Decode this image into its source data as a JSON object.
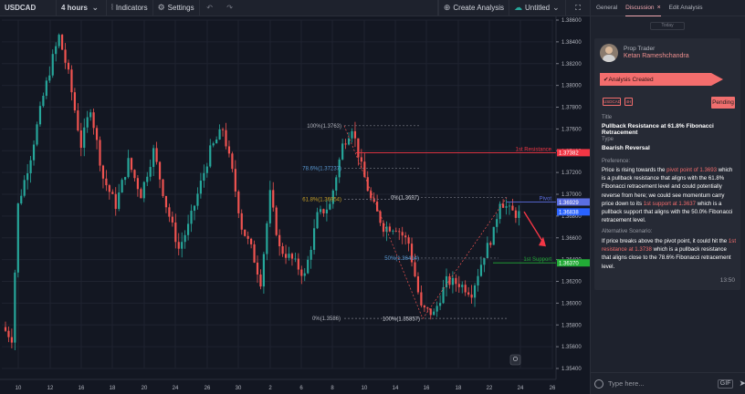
{
  "toolbar": {
    "symbol": "USDCAD",
    "interval": "4 hours",
    "indicators_label": "Indicators",
    "settings_label": "Settings",
    "create_analysis_label": "Create Analysis",
    "layout_label": "Untitled"
  },
  "panel": {
    "tabs": [
      "General",
      "Discussion",
      "Edit Analysis"
    ],
    "active_tab": "Discussion",
    "date_chip": "Today",
    "author_role": "Prop Trader",
    "author_name": "Ketan Rameshchandra",
    "status_banner": "Analysis Created",
    "tag_symbol": "USDCAD",
    "tag_interval": "4H",
    "pending_label": "Pending",
    "title_label": "Title",
    "title_value": "Pullback Resistance at 61.8% Fibonacci Retracement",
    "type_label": "Type",
    "type_value": "Bearish Reversal",
    "preference_label": "Preference:",
    "preference_text": [
      {
        "t": "Price is rising towards the ",
        "h": false
      },
      {
        "t": "pivot point of 1.3693",
        "h": true
      },
      {
        "t": " which is a pullback resistance that aligns with the 61.8% Fibonacci retracement level and could potentially reverse from here; we could see momentum carry price down to its ",
        "h": false
      },
      {
        "t": "1st support at 1.3637",
        "h": true
      },
      {
        "t": " which is a pullback support that aligns with the 50.0% Fibonacci retracement level.",
        "h": false
      }
    ],
    "alternative_label": "Alternative Scenario:",
    "alternative_text": [
      {
        "t": "If price breaks above the pivot point, it could hit the ",
        "h": false
      },
      {
        "t": "1st resistance at 1.3738",
        "h": true
      },
      {
        "t": " which is a pullback resistance that aligns close to the 78.6% Fibonacci retracement level.",
        "h": false
      }
    ],
    "time": "13:50",
    "input_placeholder": "Type here...",
    "gif_label": "GIF"
  },
  "chart": {
    "y_ticks": [
      "1.38600",
      "1.38400",
      "1.38200",
      "1.38000",
      "1.37800",
      "1.37600",
      "1.37400",
      "1.37200",
      "1.37000",
      "1.36800",
      "1.36600",
      "1.36400",
      "1.36200",
      "1.36000",
      "1.35800",
      "1.35600",
      "1.35400"
    ],
    "x_ticks": [
      "10",
      "12",
      "16",
      "18",
      "20",
      "24",
      "26",
      "30",
      "2",
      "6",
      "8",
      "10",
      "14",
      "16",
      "18",
      "22",
      "24",
      "26"
    ],
    "price_tags": {
      "resistance": "1.37382",
      "pivot": "1.36929",
      "current": "1.36838",
      "support": "1.36370"
    },
    "labels": {
      "resistance": "1st Resistance",
      "pivot": "Pivot",
      "support": "1st Support",
      "fib_100_top": "100%(1.3763)",
      "fib_786": "78.6%(1.37237)",
      "fib_618": "61.8%(1.36954)",
      "fib_0_right": "0%(1.3697)",
      "fib_50": "50%(1.36414)",
      "fib_0_bottom": "0%(1.3586)",
      "fib_100_bottom": "100%(1.35857)"
    },
    "colors": {
      "up": "#26a69a",
      "down": "#ef5350",
      "resistance": "#f23645",
      "pivot": "#5b6ee1",
      "support": "#22ab36",
      "accent": "#f36d6d"
    }
  },
  "chart_data": {
    "type": "candlestick",
    "symbol": "USDCAD",
    "interval": "4 hours",
    "ylim": [
      1.354,
      1.386
    ],
    "x_tick_labels": [
      "10",
      "12",
      "16",
      "18",
      "20",
      "24",
      "26",
      "30",
      "2",
      "6",
      "8",
      "10",
      "14",
      "16",
      "18",
      "22",
      "24",
      "26"
    ],
    "price_path": [
      [
        0,
        1.3578
      ],
      [
        3,
        1.3568
      ],
      [
        5,
        1.369
      ],
      [
        9,
        1.3735
      ],
      [
        13,
        1.379
      ],
      [
        16,
        1.3825
      ],
      [
        18,
        1.3845
      ],
      [
        21,
        1.381
      ],
      [
        25,
        1.3745
      ],
      [
        28,
        1.378
      ],
      [
        32,
        1.3715
      ],
      [
        36,
        1.369
      ],
      [
        40,
        1.373
      ],
      [
        44,
        1.37
      ],
      [
        48,
        1.374
      ],
      [
        52,
        1.369
      ],
      [
        56,
        1.365
      ],
      [
        59,
        1.367
      ],
      [
        62,
        1.37
      ],
      [
        66,
        1.374
      ],
      [
        70,
        1.376
      ],
      [
        73,
        1.372
      ],
      [
        76,
        1.367
      ],
      [
        79,
        1.365
      ],
      [
        82,
        1.362
      ],
      [
        85,
        1.37
      ],
      [
        88,
        1.365
      ],
      [
        92,
        1.364
      ],
      [
        96,
        1.3625
      ],
      [
        100,
        1.368
      ],
      [
        104,
        1.369
      ],
      [
        108,
        1.3745
      ],
      [
        111,
        1.3762
      ],
      [
        114,
        1.3725
      ],
      [
        117,
        1.3695
      ],
      [
        121,
        1.367
      ],
      [
        125,
        1.367
      ],
      [
        129,
        1.3655
      ],
      [
        133,
        1.3595
      ],
      [
        137,
        1.359
      ],
      [
        141,
        1.362
      ],
      [
        145,
        1.3618
      ],
      [
        149,
        1.361
      ],
      [
        153,
        1.3645
      ],
      [
        156,
        1.3665
      ],
      [
        158,
        1.3695
      ],
      [
        161,
        1.3685
      ],
      [
        163,
        1.3682
      ]
    ],
    "levels": [
      {
        "name": "1st Resistance",
        "value": 1.37382
      },
      {
        "name": "Pivot",
        "value": 1.36929
      },
      {
        "name": "1st Support",
        "value": 1.3637
      }
    ],
    "fibonacci": [
      {
        "label": "100%(1.3763)",
        "value": 1.3763
      },
      {
        "label": "78.6%(1.37237)",
        "value": 1.37237
      },
      {
        "label": "61.8%(1.36954)",
        "value": 1.36954
      },
      {
        "label": "0%(1.3697)",
        "value": 1.3697
      },
      {
        "label": "50%(1.36414)",
        "value": 1.36414
      },
      {
        "label": "0%(1.3586)",
        "value": 1.3586
      },
      {
        "label": "100%(1.35857)",
        "value": 1.35857
      }
    ],
    "current_price": 1.36838
  }
}
